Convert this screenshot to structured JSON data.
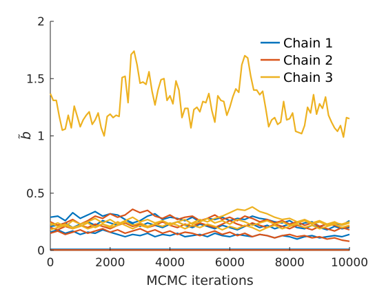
{
  "chart_data": {
    "type": "line",
    "xlabel": "MCMC iterations",
    "ylabel": "b̃",
    "xlim": [
      0,
      10000
    ],
    "ylim": [
      0,
      2
    ],
    "xticks": [
      0,
      2000,
      4000,
      6000,
      8000,
      10000
    ],
    "xtick_labels": [
      "0",
      "2000",
      "4000",
      "6000",
      "8000",
      "10000"
    ],
    "yticks": [
      0,
      0.5,
      1,
      1.5,
      2
    ],
    "ytick_labels": [
      "0",
      "0.5",
      "1",
      "1.5",
      "2"
    ],
    "grid": false,
    "legend_position": "top-right",
    "legend": [
      {
        "label": "Chain 1",
        "color": "#0072BD"
      },
      {
        "label": "Chain 2",
        "color": "#D95319"
      },
      {
        "label": "Chain 3",
        "color": "#EDB120"
      }
    ],
    "series": [
      {
        "color": "#0072BD",
        "x": [
          0,
          1000,
          2000,
          3000,
          4000,
          5000,
          6000,
          7000,
          8000,
          9000,
          10000
        ],
        "values": [
          0.01,
          0.01,
          0.01,
          0.01,
          0.01,
          0.01,
          0.01,
          0.01,
          0.01,
          0.01,
          0.01
        ]
      },
      {
        "color": "#D95319",
        "x": [
          0,
          1000,
          2000,
          3000,
          4000,
          5000,
          6000,
          7000,
          8000,
          9000,
          10000
        ],
        "values": [
          0.005,
          0.005,
          0.005,
          0.005,
          0.005,
          0.005,
          0.005,
          0.005,
          0.005,
          0.005,
          0.005
        ]
      },
      {
        "color": "#EDB120",
        "x": [
          0,
          100,
          200,
          300,
          400,
          500,
          600,
          700,
          800,
          900,
          1000,
          1100,
          1200,
          1300,
          1400,
          1500,
          1600,
          1700,
          1800,
          1900,
          2000,
          2100,
          2200,
          2300,
          2400,
          2500,
          2600,
          2700,
          2800,
          2900,
          3000,
          3100,
          3200,
          3300,
          3400,
          3500,
          3600,
          3700,
          3800,
          3900,
          4000,
          4100,
          4200,
          4300,
          4400,
          4500,
          4600,
          4700,
          4800,
          4900,
          5000,
          5100,
          5200,
          5300,
          5400,
          5500,
          5600,
          5700,
          5800,
          5900,
          6000,
          6100,
          6200,
          6300,
          6400,
          6500,
          6600,
          6700,
          6800,
          6900,
          7000,
          7100,
          7200,
          7300,
          7400,
          7500,
          7600,
          7700,
          7800,
          7900,
          8000,
          8100,
          8200,
          8300,
          8400,
          8500,
          8600,
          8700,
          8800,
          8900,
          9000,
          9100,
          9200,
          9300,
          9400,
          9500,
          9600,
          9700,
          9800,
          9900,
          10000
        ],
        "values": [
          1.37,
          1.31,
          1.31,
          1.17,
          1.05,
          1.06,
          1.18,
          1.07,
          1.26,
          1.17,
          1.08,
          1.14,
          1.18,
          1.21,
          1.1,
          1.14,
          1.2,
          1.07,
          1.0,
          1.17,
          1.19,
          1.16,
          1.18,
          1.17,
          1.51,
          1.52,
          1.29,
          1.71,
          1.74,
          1.62,
          1.46,
          1.47,
          1.45,
          1.56,
          1.39,
          1.27,
          1.4,
          1.49,
          1.5,
          1.31,
          1.35,
          1.28,
          1.48,
          1.4,
          1.16,
          1.24,
          1.24,
          1.07,
          1.23,
          1.25,
          1.21,
          1.3,
          1.29,
          1.37,
          1.22,
          1.12,
          1.35,
          1.31,
          1.3,
          1.18,
          1.25,
          1.34,
          1.41,
          1.38,
          1.62,
          1.7,
          1.68,
          1.52,
          1.4,
          1.4,
          1.36,
          1.39,
          1.24,
          1.08,
          1.14,
          1.16,
          1.1,
          1.12,
          1.3,
          1.14,
          1.15,
          1.2,
          1.04,
          1.03,
          1.02,
          1.09,
          1.25,
          1.2,
          1.36,
          1.19,
          1.28,
          1.24,
          1.34,
          1.18,
          1.12,
          1.07,
          1.04,
          1.09,
          0.99,
          1.16,
          1.15
        ]
      },
      {
        "color": "#0072BD",
        "x": [
          0,
          250,
          500,
          750,
          1000,
          1250,
          1500,
          1750,
          2000,
          2250,
          2500,
          2750,
          3000,
          3250,
          3500,
          3750,
          4000,
          4250,
          4500,
          4750,
          5000,
          5250,
          5500,
          5750,
          6000,
          6250,
          6500,
          6750,
          7000,
          7250,
          7500,
          7750,
          8000,
          8250,
          8500,
          8750,
          9000,
          9250,
          9500,
          9750,
          10000
        ],
        "values": [
          0.29,
          0.3,
          0.26,
          0.33,
          0.28,
          0.31,
          0.34,
          0.3,
          0.32,
          0.31,
          0.27,
          0.24,
          0.26,
          0.3,
          0.32,
          0.27,
          0.29,
          0.28,
          0.26,
          0.29,
          0.25,
          0.28,
          0.27,
          0.29,
          0.26,
          0.28,
          0.27,
          0.3,
          0.28,
          0.27,
          0.25,
          0.24,
          0.26,
          0.22,
          0.24,
          0.25,
          0.21,
          0.23,
          0.24,
          0.22,
          0.26
        ]
      },
      {
        "color": "#0072BD",
        "x": [
          0,
          250,
          500,
          750,
          1000,
          1250,
          1500,
          1750,
          2000,
          2250,
          2500,
          2750,
          3000,
          3250,
          3500,
          3750,
          4000,
          4250,
          4500,
          4750,
          5000,
          5250,
          5500,
          5750,
          6000,
          6250,
          6500,
          6750,
          7000,
          7250,
          7500,
          7750,
          8000,
          8250,
          8500,
          8750,
          9000,
          9250,
          9500,
          9750,
          10000
        ],
        "values": [
          0.16,
          0.18,
          0.15,
          0.17,
          0.14,
          0.16,
          0.15,
          0.18,
          0.16,
          0.14,
          0.12,
          0.14,
          0.13,
          0.15,
          0.12,
          0.14,
          0.13,
          0.15,
          0.12,
          0.13,
          0.14,
          0.12,
          0.15,
          0.13,
          0.12,
          0.14,
          0.13,
          0.12,
          0.14,
          0.13,
          0.11,
          0.13,
          0.12,
          0.1,
          0.12,
          0.13,
          0.11,
          0.12,
          0.13,
          0.12,
          0.14
        ]
      },
      {
        "color": "#0072BD",
        "x": [
          0,
          250,
          500,
          750,
          1000,
          1250,
          1500,
          1750,
          2000,
          2250,
          2500,
          2750,
          3000,
          3250,
          3500,
          3750,
          4000,
          4250,
          4500,
          4750,
          5000,
          5250,
          5500,
          5750,
          6000,
          6250,
          6500,
          6750,
          7000,
          7250,
          7500,
          7750,
          8000,
          8250,
          8500,
          8750,
          9000,
          9250,
          9500,
          9750,
          10000
        ],
        "values": [
          0.21,
          0.22,
          0.24,
          0.2,
          0.23,
          0.25,
          0.22,
          0.26,
          0.24,
          0.22,
          0.25,
          0.23,
          0.21,
          0.24,
          0.22,
          0.2,
          0.23,
          0.25,
          0.22,
          0.2,
          0.23,
          0.21,
          0.19,
          0.22,
          0.2,
          0.18,
          0.21,
          0.23,
          0.2,
          0.22,
          0.19,
          0.21,
          0.23,
          0.2,
          0.19,
          0.22,
          0.2,
          0.18,
          0.21,
          0.19,
          0.2
        ]
      },
      {
        "color": "#D95319",
        "x": [
          0,
          250,
          500,
          750,
          1000,
          1250,
          1500,
          1750,
          2000,
          2250,
          2500,
          2750,
          3000,
          3250,
          3500,
          3750,
          4000,
          4250,
          4500,
          4750,
          5000,
          5250,
          5500,
          5750,
          6000,
          6250,
          6500,
          6750,
          7000,
          7250,
          7500,
          7750,
          8000,
          8250,
          8500,
          8750,
          9000,
          9250,
          9500,
          9750,
          10000
        ],
        "values": [
          0.25,
          0.22,
          0.24,
          0.27,
          0.23,
          0.26,
          0.3,
          0.28,
          0.32,
          0.29,
          0.31,
          0.36,
          0.33,
          0.35,
          0.3,
          0.28,
          0.31,
          0.27,
          0.29,
          0.3,
          0.26,
          0.28,
          0.31,
          0.27,
          0.29,
          0.26,
          0.3,
          0.28,
          0.25,
          0.27,
          0.24,
          0.26,
          0.23,
          0.25,
          0.22,
          0.24,
          0.21,
          0.23,
          0.22,
          0.2,
          0.21
        ]
      },
      {
        "color": "#D95319",
        "x": [
          0,
          250,
          500,
          750,
          1000,
          1250,
          1500,
          1750,
          2000,
          2250,
          2500,
          2750,
          3000,
          3250,
          3500,
          3750,
          4000,
          4250,
          4500,
          4750,
          5000,
          5250,
          5500,
          5750,
          6000,
          6250,
          6500,
          6750,
          7000,
          7250,
          7500,
          7750,
          8000,
          8250,
          8500,
          8750,
          9000,
          9250,
          9500,
          9750,
          10000
        ],
        "values": [
          0.15,
          0.17,
          0.14,
          0.16,
          0.18,
          0.15,
          0.17,
          0.19,
          0.16,
          0.18,
          0.15,
          0.17,
          0.19,
          0.16,
          0.18,
          0.15,
          0.17,
          0.14,
          0.16,
          0.15,
          0.13,
          0.15,
          0.17,
          0.14,
          0.16,
          0.13,
          0.15,
          0.12,
          0.14,
          0.13,
          0.11,
          0.13,
          0.14,
          0.12,
          0.13,
          0.11,
          0.12,
          0.1,
          0.11,
          0.09,
          0.08
        ]
      },
      {
        "color": "#D95319",
        "x": [
          0,
          250,
          500,
          750,
          1000,
          1250,
          1500,
          1750,
          2000,
          2250,
          2500,
          2750,
          3000,
          3250,
          3500,
          3750,
          4000,
          4250,
          4500,
          4750,
          5000,
          5250,
          5500,
          5750,
          6000,
          6250,
          6500,
          6750,
          7000,
          7250,
          7500,
          7750,
          8000,
          8250,
          8500,
          8750,
          9000,
          9250,
          9500,
          9750,
          10000
        ],
        "values": [
          0.2,
          0.18,
          0.21,
          0.19,
          0.22,
          0.2,
          0.23,
          0.21,
          0.19,
          0.22,
          0.24,
          0.21,
          0.23,
          0.2,
          0.22,
          0.25,
          0.22,
          0.2,
          0.23,
          0.21,
          0.24,
          0.22,
          0.2,
          0.23,
          0.26,
          0.23,
          0.21,
          0.24,
          0.22,
          0.2,
          0.23,
          0.21,
          0.19,
          0.22,
          0.2,
          0.18,
          0.21,
          0.19,
          0.17,
          0.2,
          0.18
        ]
      },
      {
        "color": "#EDB120",
        "x": [
          0,
          250,
          500,
          750,
          1000,
          1250,
          1500,
          1750,
          2000,
          2250,
          2500,
          2750,
          3000,
          3250,
          3500,
          3750,
          4000,
          4250,
          4500,
          4750,
          5000,
          5250,
          5500,
          5750,
          6000,
          6250,
          6500,
          6750,
          7000,
          7250,
          7500,
          7750,
          8000,
          8250,
          8500,
          8750,
          9000,
          9250,
          9500,
          9750,
          10000
        ],
        "values": [
          0.24,
          0.21,
          0.23,
          0.2,
          0.22,
          0.19,
          0.21,
          0.23,
          0.2,
          0.22,
          0.25,
          0.22,
          0.24,
          0.21,
          0.23,
          0.26,
          0.23,
          0.25,
          0.22,
          0.24,
          0.27,
          0.25,
          0.28,
          0.3,
          0.33,
          0.36,
          0.35,
          0.38,
          0.34,
          0.32,
          0.29,
          0.27,
          0.28,
          0.25,
          0.27,
          0.24,
          0.26,
          0.23,
          0.25,
          0.22,
          0.24
        ]
      },
      {
        "color": "#EDB120",
        "x": [
          0,
          250,
          500,
          750,
          1000,
          1250,
          1500,
          1750,
          2000,
          2250,
          2500,
          2750,
          3000,
          3250,
          3500,
          3750,
          4000,
          4250,
          4500,
          4750,
          5000,
          5250,
          5500,
          5750,
          6000,
          6250,
          6500,
          6750,
          7000,
          7250,
          7500,
          7750,
          8000,
          8250,
          8500,
          8750,
          9000,
          9250,
          9500,
          9750,
          10000
        ],
        "values": [
          0.18,
          0.2,
          0.22,
          0.19,
          0.21,
          0.24,
          0.2,
          0.23,
          0.21,
          0.25,
          0.22,
          0.19,
          0.22,
          0.2,
          0.23,
          0.21,
          0.24,
          0.22,
          0.19,
          0.22,
          0.2,
          0.23,
          0.21,
          0.18,
          0.21,
          0.19,
          0.22,
          0.2,
          0.17,
          0.2,
          0.22,
          0.19,
          0.21,
          0.23,
          0.2,
          0.22,
          0.19,
          0.21,
          0.23,
          0.2,
          0.22
        ]
      },
      {
        "color": "#EDB120",
        "x": [
          0,
          250,
          500,
          750,
          1000,
          1250,
          1500,
          1750,
          2000,
          2250,
          2500,
          2750,
          3000,
          3250,
          3500,
          3750,
          4000,
          4250,
          4500,
          4750,
          5000,
          5250,
          5500,
          5750,
          6000,
          6250,
          6500,
          6750,
          7000,
          7250,
          7500,
          7750,
          8000,
          8250,
          8500,
          8750,
          9000,
          9250,
          9500,
          9750,
          10000
        ],
        "values": [
          0.22,
          0.24,
          0.21,
          0.26,
          0.23,
          0.25,
          0.28,
          0.24,
          0.27,
          0.23,
          0.26,
          0.29,
          0.25,
          0.27,
          0.24,
          0.26,
          0.22,
          0.25,
          0.27,
          0.23,
          0.25,
          0.28,
          0.24,
          0.26,
          0.23,
          0.27,
          0.25,
          0.22,
          0.24,
          0.26,
          0.23,
          0.25,
          0.22,
          0.24,
          0.26,
          0.23,
          0.25,
          0.22,
          0.24,
          0.23,
          0.25
        ]
      }
    ]
  }
}
